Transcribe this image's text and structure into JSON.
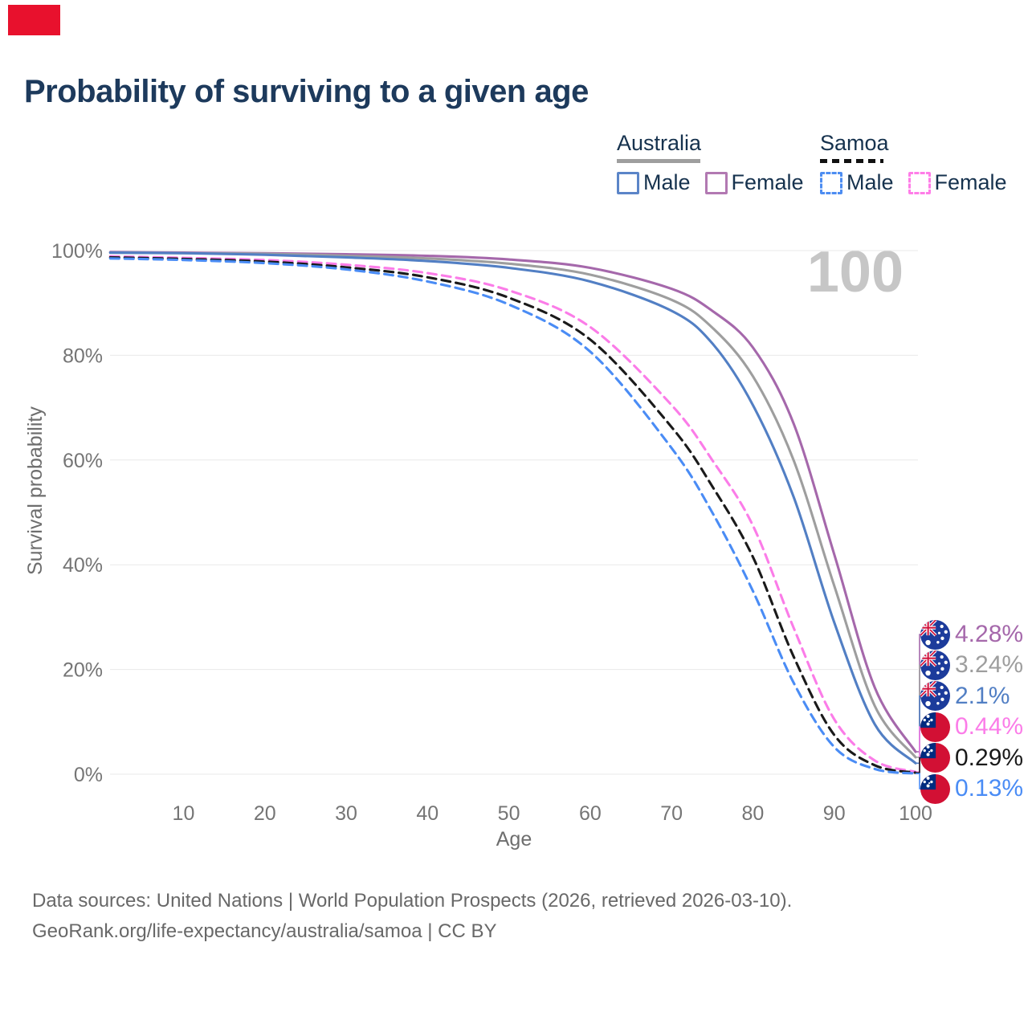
{
  "page": {
    "title": "Probability of surviving to a given age",
    "watermark": "100",
    "caption_line1": "Data sources: United Nations | World Population Prospects (2026, retrieved 2026-03-10).",
    "caption_line2": "GeoRank.org/life-expectancy/australia/samoa | CC BY"
  },
  "legend": {
    "groups": [
      {
        "name": "Australia",
        "line_style": "solid",
        "underline_color": "#9e9e9e",
        "items": [
          {
            "label": "Male",
            "color": "#5b85c8"
          },
          {
            "label": "Female",
            "color": "#b279b2"
          }
        ]
      },
      {
        "name": "Samoa",
        "line_style": "dashed",
        "underline_color": "#1a1a1a",
        "items": [
          {
            "label": "Male",
            "color": "#4d8df2"
          },
          {
            "label": "Female",
            "color": "#ff7de8"
          }
        ]
      }
    ]
  },
  "chart_data": {
    "type": "line",
    "title": "Probability of surviving to a given age",
    "xlabel": "Age",
    "ylabel": "Survival probability",
    "xlim": [
      1,
      100
    ],
    "ylim": [
      0,
      100
    ],
    "grid": "horizontal-only",
    "legend_position": "top-right",
    "xticks": [
      10,
      20,
      30,
      40,
      50,
      60,
      70,
      80,
      90,
      100
    ],
    "yticks": [
      0,
      20,
      40,
      60,
      80,
      100
    ],
    "ytick_suffix": "%",
    "x": [
      1,
      10,
      20,
      30,
      40,
      50,
      60,
      70,
      75,
      80,
      85,
      90,
      95,
      100
    ],
    "series": [
      {
        "name": "Australia Female",
        "country": "Australia",
        "sex": "Female",
        "style": "solid",
        "color": "#a568ab",
        "flag": "australia-flag-icon",
        "end_label": "4.28%",
        "values": [
          99.7,
          99.6,
          99.5,
          99.3,
          99.0,
          98.3,
          96.7,
          92.7,
          88.5,
          81.5,
          67.0,
          42.0,
          16.5,
          4.28
        ]
      },
      {
        "name": "Australia Total",
        "country": "Australia",
        "sex": "Both",
        "style": "solid",
        "color": "#9e9e9e",
        "flag": "australia-flag-icon",
        "end_label": "3.24%",
        "values": [
          99.6,
          99.5,
          99.4,
          99.0,
          98.5,
          97.5,
          95.4,
          90.6,
          85.3,
          76.0,
          60.0,
          36.0,
          13.0,
          3.24
        ]
      },
      {
        "name": "Australia Male",
        "country": "Australia",
        "sex": "Male",
        "style": "solid",
        "color": "#527fc4",
        "flag": "australia-flag-icon",
        "end_label": "2.1%",
        "values": [
          99.6,
          99.5,
          99.2,
          98.7,
          98.0,
          96.7,
          94.1,
          88.5,
          82.3,
          70.5,
          53.0,
          29.0,
          9.5,
          2.1
        ]
      },
      {
        "name": "Samoa Female",
        "country": "Samoa",
        "sex": "Female",
        "style": "dashed",
        "color": "#fb7ce8",
        "flag": "samoa-flag-icon",
        "end_label": "0.44%",
        "values": [
          98.9,
          98.6,
          98.2,
          97.3,
          95.7,
          92.4,
          85.4,
          70.5,
          60.0,
          47.5,
          28.0,
          10.5,
          2.6,
          0.44
        ]
      },
      {
        "name": "Samoa Total",
        "country": "Samoa",
        "sex": "Both",
        "style": "dashed",
        "color": "#1a1a1a",
        "flag": "samoa-flag-icon",
        "end_label": "0.29%",
        "values": [
          98.7,
          98.4,
          97.9,
          96.8,
          94.9,
          91.0,
          83.0,
          66.3,
          55.0,
          41.5,
          22.5,
          7.5,
          1.7,
          0.29
        ]
      },
      {
        "name": "Samoa Male",
        "country": "Samoa",
        "sex": "Male",
        "style": "dashed",
        "color": "#4a8cf5",
        "flag": "samoa-flag-icon",
        "end_label": "0.13%",
        "values": [
          98.5,
          98.2,
          97.6,
          96.4,
          94.1,
          89.7,
          80.7,
          62.3,
          50.0,
          35.0,
          17.5,
          5.2,
          1.0,
          0.13
        ]
      }
    ]
  }
}
